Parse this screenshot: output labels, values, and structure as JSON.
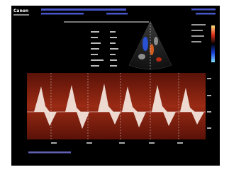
{
  "header": {
    "brand": "Canon"
  }
}
